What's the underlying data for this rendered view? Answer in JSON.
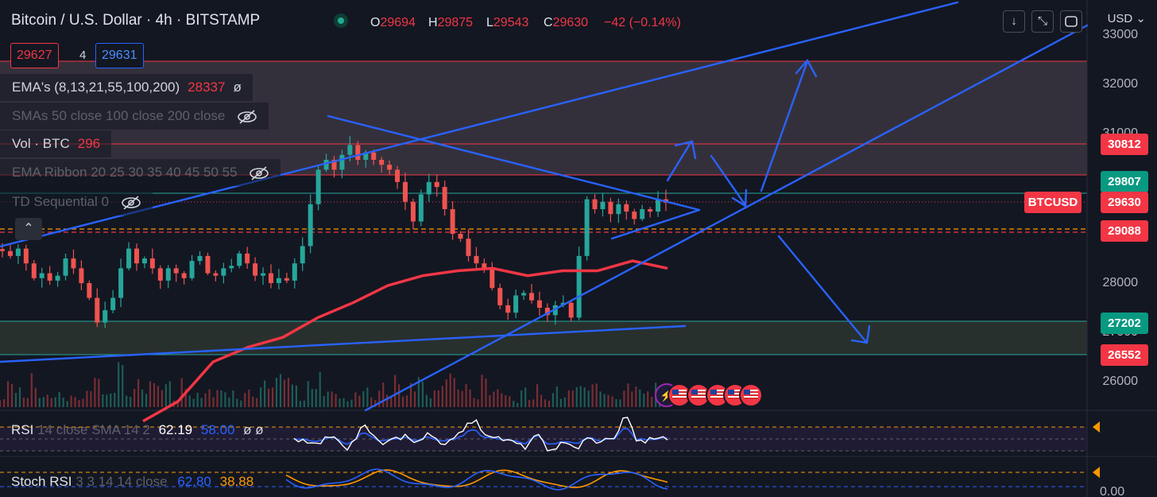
{
  "header": {
    "symbol": "Bitcoin / U.S. Dollar · 4h · BITSTAMP",
    "ohlc": [
      {
        "k": "O",
        "v": "29694"
      },
      {
        "k": "H",
        "v": "29875"
      },
      {
        "k": "L",
        "v": "29543"
      },
      {
        "k": "C",
        "v": "29630"
      },
      {
        "k": "",
        "v": "−42 (−0.14%)"
      }
    ],
    "sell_price": "29627",
    "quantity": "4",
    "buy_price": "29631"
  },
  "indicators": {
    "ema": {
      "label": "EMA's (8,13,21,55,100,200)",
      "value": "28337",
      "extra": "ø"
    },
    "sma": {
      "label": "SMAs 50 close 100 close 200 close"
    },
    "vol": {
      "label": "Vol · BTC",
      "value": "296"
    },
    "ribbon": {
      "label": "EMA Ribbon 20 25 30 35 40 45 50 55"
    },
    "td": {
      "label": "TD Sequential 0"
    }
  },
  "toolbar": {
    "currency": "USD",
    "collapse_glyph": "⌃",
    "down_glyph": "↓",
    "expand_glyph": "⤡",
    "screenshot_glyph": "▢"
  },
  "price_axis": [
    "33000",
    "32000",
    "31000",
    "28000",
    "27000",
    "26000"
  ],
  "price_labels": {
    "r1": "30812",
    "r2": "29807",
    "ticker": "BTCUSD",
    "last": "29630",
    "r3": "29088",
    "s1": "27202",
    "s2": "26552"
  },
  "rsi": {
    "name": "RSI",
    "params": "14 close SMA 14 2",
    "value1": "62.19",
    "value2": "58.00",
    "extra": "ø ø"
  },
  "stoch": {
    "name": "Stoch RSI",
    "params": "3 3 14 14 close",
    "value1": "62.80",
    "value2": "38.88"
  },
  "stoch_axis": "0.00",
  "colors": {
    "bg": "#131722",
    "up": "#26a69a",
    "down": "#ef5350",
    "trend": "#2962ff",
    "ema": "#f23645",
    "resistance": "#f23645",
    "support": "#26a69a"
  },
  "chart_data": {
    "type": "candlestick",
    "timeframe": "4h",
    "price_range": [
      25500,
      33300
    ],
    "close_series": [
      28650,
      28550,
      28700,
      28400,
      28100,
      28200,
      28050,
      28150,
      28500,
      28300,
      28000,
      27700,
      27200,
      27450,
      27700,
      28300,
      28700,
      28400,
      28500,
      28300,
      28050,
      28300,
      28200,
      28100,
      28450,
      28550,
      28200,
      28150,
      28300,
      28350,
      28600,
      28400,
      28150,
      28200,
      28000,
      28100,
      28050,
      28400,
      28750,
      29600,
      30300,
      30500,
      30300,
      30600,
      30800,
      30500,
      30650,
      30500,
      30400,
      30300,
      30050,
      29650,
      29250,
      29800,
      30050,
      29950,
      29500,
      29000,
      28900,
      28550,
      28400,
      28300,
      27900,
      27550,
      27400,
      27750,
      27800,
      27650,
      27500,
      27350,
      27550,
      27600,
      27300,
      28550,
      29700,
      29500,
      29650,
      29400,
      29600,
      29450,
      29300,
      29500,
      29450,
      29700,
      29630
    ],
    "ema200": [
      [
        25200,
        25600
      ],
      [
        26400,
        26700
      ],
      [
        26900,
        27300
      ],
      [
        27600,
        27950
      ],
      [
        28150,
        28250
      ],
      [
        28300,
        28150
      ],
      [
        28250,
        28250
      ],
      [
        28450,
        28300
      ]
    ],
    "levels": {
      "resistance_high": 32400,
      "resistance_mid": 30812,
      "resistance_low": 29807,
      "current": 29630,
      "pivot": 29088,
      "support_high": 27202,
      "support_low": 26552
    }
  }
}
